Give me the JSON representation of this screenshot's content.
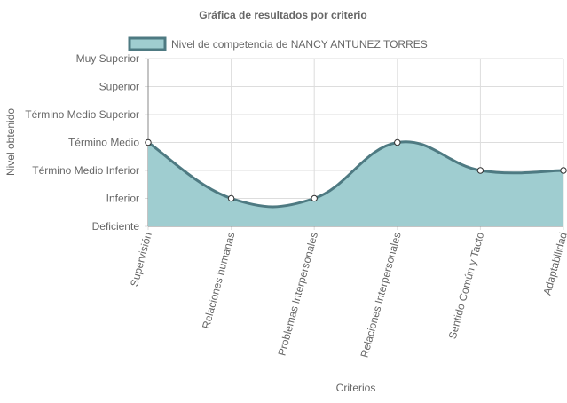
{
  "chart_data": {
    "type": "area",
    "title": "Gráfica de resultados por criterio",
    "xlabel": "Criterios",
    "ylabel": "Nivel obtenido",
    "categories": [
      "Supervisión",
      "Relaciones humanas",
      "Problemas Interpersonales",
      "Relaciones Interpersonales",
      "Sentido Común y Tacto",
      "Adaptabilidad"
    ],
    "levels": [
      "Deficiente",
      "Inferior",
      "Término Medio Inferior",
      "Término Medio",
      "Término Medio Superior",
      "Superior",
      "Muy Superior"
    ],
    "ylim": [
      0,
      6
    ],
    "series": [
      {
        "name": "Nivel de competencia de NANCY ANTUNEZ TORRES",
        "values": [
          3,
          1,
          1,
          3,
          2,
          2
        ]
      }
    ],
    "legend_position": "top",
    "grid": true,
    "colors": {
      "fill": "#9fcdd0",
      "line": "#4e7a82",
      "point_fill": "#ffffff",
      "grid": "#dddddd",
      "axis": "#888888"
    }
  }
}
